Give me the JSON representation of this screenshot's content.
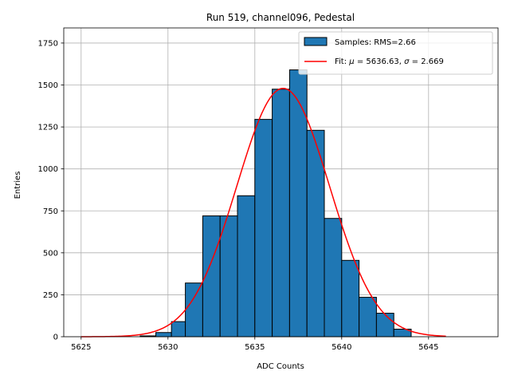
{
  "chart_data": {
    "type": "bar",
    "title": "Run 519, channel096, Pedestal",
    "xlabel": "ADC Counts",
    "ylabel": "Entries",
    "xlim": [
      624.0,
      649.0
    ],
    "ylim": [
      0,
      1840
    ],
    "x_offset_display": 5000,
    "xticks": [
      5625,
      5630,
      5635,
      5640,
      5645
    ],
    "xtick_labels": [
      "5625",
      "5630",
      "5635",
      "5640",
      "5645"
    ],
    "yticks": [
      0,
      250,
      500,
      750,
      1000,
      1250,
      1500,
      1750
    ],
    "ytick_labels": [
      "0",
      "250",
      "500",
      "750",
      "1000",
      "1250",
      "1500",
      "1750"
    ],
    "grid": true,
    "legend_position": "top-right",
    "histogram": {
      "name": "Samples: RMS=2.66",
      "color": "#1f77b4",
      "bin_edges": [
        5628.4,
        5629.3,
        5630.2,
        5631.0,
        5632.0,
        5633.0,
        5634.0,
        5635.0,
        5636.0,
        5637.0,
        5638.0,
        5639.0,
        5640.0,
        5641.0,
        5642.0,
        5643.0
      ],
      "values": [
        5,
        25,
        90,
        320,
        720,
        720,
        840,
        1295,
        1475,
        1590,
        1230,
        705,
        455,
        235,
        140,
        45
      ]
    },
    "fit": {
      "name": "Fit: μ = 5636.63, σ = 2.669",
      "name_parts": [
        "Fit: ",
        "μ",
        " = 5636.63, ",
        "σ",
        " = 2.669"
      ],
      "color": "#ff0000",
      "mu": 5636.63,
      "sigma": 2.669,
      "amplitude": 1480,
      "x_range": [
        5625,
        5646
      ]
    }
  }
}
